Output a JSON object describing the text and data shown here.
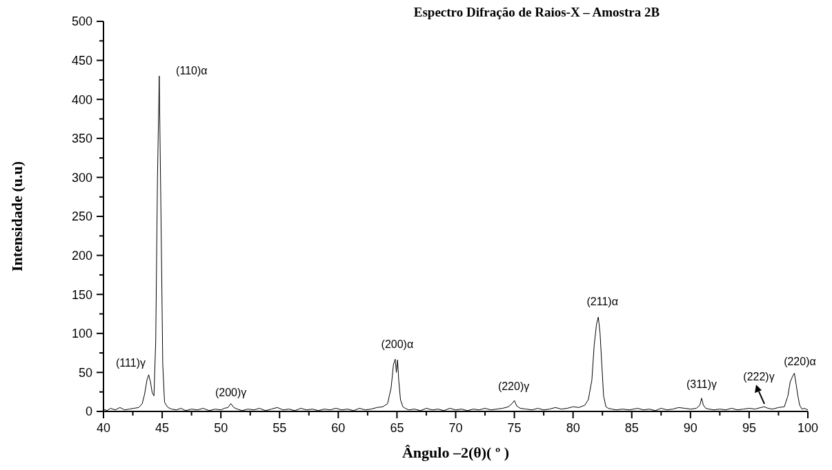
{
  "chart_data": {
    "type": "line",
    "title": "Espectro Difração de Raios-X – Amostra 2B",
    "xlabel": "Ângulo –2(θ)( º )",
    "ylabel": "Intensidade (u.u)",
    "xlim": [
      40,
      100
    ],
    "ylim": [
      0,
      500
    ],
    "xticks": [
      40,
      45,
      50,
      55,
      60,
      65,
      70,
      75,
      80,
      85,
      90,
      95,
      100
    ],
    "yticks": [
      0,
      50,
      100,
      150,
      200,
      250,
      300,
      350,
      400,
      450,
      500
    ],
    "grid": false,
    "series": [
      {
        "color": "#000000",
        "x": [
          40,
          40.3,
          40.6,
          41,
          41.4,
          41.8,
          42.2,
          42.6,
          43,
          43.3,
          43.5,
          43.7,
          43.85,
          44,
          44.15,
          44.3,
          44.45,
          44.6,
          44.75,
          44.9,
          45.05,
          45.2,
          45.35,
          45.5,
          45.8,
          46.2,
          46.6,
          47,
          47.5,
          48,
          48.5,
          49,
          49.5,
          50,
          50.3,
          50.6,
          50.85,
          51.1,
          51.4,
          51.8,
          52.3,
          52.8,
          53.3,
          53.8,
          54.3,
          54.8,
          55.3,
          55.8,
          56.3,
          56.8,
          57.3,
          57.8,
          58.3,
          58.8,
          59.3,
          59.8,
          60.3,
          60.8,
          61.3,
          61.8,
          62.3,
          62.8,
          63.3,
          63.8,
          64.2,
          64.5,
          64.7,
          64.85,
          64.95,
          65.05,
          65.15,
          65.3,
          65.5,
          65.7,
          66,
          66.5,
          67,
          67.5,
          68,
          68.5,
          69,
          69.5,
          70,
          70.5,
          71,
          71.5,
          72,
          72.5,
          73,
          73.5,
          74,
          74.5,
          74.8,
          75,
          75.2,
          75.5,
          76,
          76.5,
          77,
          77.5,
          78,
          78.5,
          79,
          79.5,
          80,
          80.5,
          81,
          81.3,
          81.6,
          81.8,
          82,
          82.15,
          82.3,
          82.45,
          82.6,
          82.8,
          83,
          83.3,
          83.7,
          84.2,
          84.8,
          85.5,
          86,
          86.5,
          87,
          87.5,
          88,
          88.5,
          89,
          89.5,
          90,
          90.5,
          90.8,
          90.95,
          91.1,
          91.3,
          91.6,
          92,
          92.5,
          93,
          93.5,
          94,
          94.5,
          95,
          95.5,
          96,
          96.3,
          96.6,
          97,
          97.5,
          98,
          98.3,
          98.5,
          98.7,
          98.85,
          99,
          99.15,
          99.3,
          99.5,
          99.7,
          100
        ],
        "values": [
          3,
          1,
          4,
          2,
          5,
          2,
          3,
          4,
          5,
          10,
          22,
          40,
          47,
          38,
          24,
          20,
          90,
          300,
          430,
          250,
          60,
          12,
          8,
          5,
          3,
          2,
          4,
          1,
          3,
          2,
          4,
          1,
          3,
          2,
          4,
          5,
          10,
          5,
          3,
          1,
          3,
          2,
          4,
          1,
          3,
          5,
          2,
          3,
          1,
          4,
          2,
          3,
          1,
          3,
          2,
          4,
          2,
          3,
          1,
          4,
          2,
          3,
          5,
          6,
          10,
          30,
          60,
          67,
          50,
          66,
          40,
          15,
          6,
          4,
          2,
          3,
          1,
          4,
          2,
          3,
          1,
          4,
          2,
          3,
          1,
          3,
          2,
          4,
          2,
          3,
          4,
          6,
          10,
          14,
          7,
          4,
          3,
          2,
          4,
          2,
          3,
          5,
          3,
          4,
          6,
          5,
          8,
          15,
          40,
          85,
          112,
          121,
          100,
          60,
          20,
          6,
          4,
          3,
          2,
          3,
          2,
          4,
          2,
          3,
          1,
          4,
          2,
          3,
          5,
          4,
          3,
          4,
          8,
          17,
          8,
          4,
          3,
          2,
          3,
          2,
          4,
          2,
          3,
          4,
          3,
          5,
          6,
          4,
          3,
          5,
          6,
          20,
          38,
          45,
          49,
          35,
          20,
          8,
          3,
          4,
          2
        ]
      }
    ],
    "annotations": [
      {
        "text": "(110)α",
        "x": 44.75,
        "y": 430
      },
      {
        "text": "(111)γ",
        "x": 43.85,
        "y": 47
      },
      {
        "text": "(200)γ",
        "x": 50.85,
        "y": 10
      },
      {
        "text": "(200)α",
        "x": 64.85,
        "y": 67
      },
      {
        "text": "(220)γ",
        "x": 75,
        "y": 14
      },
      {
        "text": "(211)α",
        "x": 82.15,
        "y": 121
      },
      {
        "text": "(311)γ",
        "x": 90.95,
        "y": 17
      },
      {
        "text": "(222)γ",
        "x": 96.3,
        "y": 6
      },
      {
        "text": "(220)α",
        "x": 98.85,
        "y": 49
      }
    ]
  }
}
